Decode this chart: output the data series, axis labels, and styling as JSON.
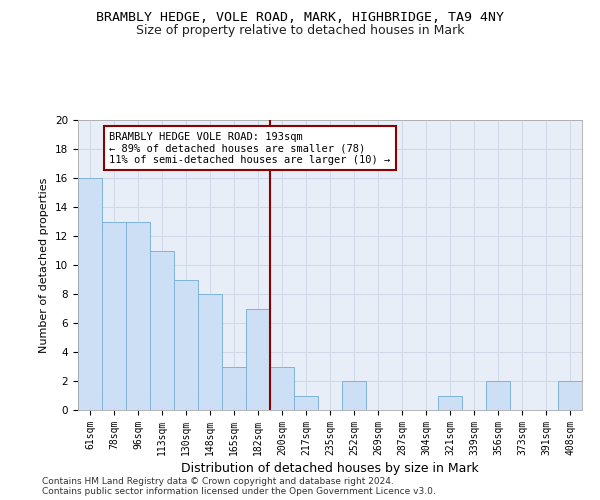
{
  "title": "BRAMBLY HEDGE, VOLE ROAD, MARK, HIGHBRIDGE, TA9 4NY",
  "subtitle": "Size of property relative to detached houses in Mark",
  "xlabel": "Distribution of detached houses by size in Mark",
  "ylabel": "Number of detached properties",
  "categories": [
    "61sqm",
    "78sqm",
    "96sqm",
    "113sqm",
    "130sqm",
    "148sqm",
    "165sqm",
    "182sqm",
    "200sqm",
    "217sqm",
    "235sqm",
    "252sqm",
    "269sqm",
    "287sqm",
    "304sqm",
    "321sqm",
    "339sqm",
    "356sqm",
    "373sqm",
    "391sqm",
    "408sqm"
  ],
  "values": [
    16,
    13,
    13,
    11,
    9,
    8,
    3,
    7,
    3,
    1,
    0,
    2,
    0,
    0,
    0,
    1,
    0,
    2,
    0,
    0,
    2
  ],
  "bar_color": "#ccdff5",
  "bar_edge_color": "#7fb3d9",
  "vline_x": 7.5,
  "vline_color": "#8b0000",
  "annotation_line1": "BRAMBLY HEDGE VOLE ROAD: 193sqm",
  "annotation_line2": "← 89% of detached houses are smaller (78)",
  "annotation_line3": "11% of semi-detached houses are larger (10) →",
  "annotation_box_color": "#8b0000",
  "ylim": [
    0,
    20
  ],
  "yticks": [
    0,
    2,
    4,
    6,
    8,
    10,
    12,
    14,
    16,
    18,
    20
  ],
  "grid_color": "#d0d8e8",
  "background_color": "#e8eef8",
  "footer_line1": "Contains HM Land Registry data © Crown copyright and database right 2024.",
  "footer_line2": "Contains public sector information licensed under the Open Government Licence v3.0.",
  "title_fontsize": 9.5,
  "subtitle_fontsize": 9,
  "xlabel_fontsize": 9,
  "ylabel_fontsize": 8,
  "tick_fontsize": 7,
  "annotation_fontsize": 7.5,
  "footer_fontsize": 6.5
}
